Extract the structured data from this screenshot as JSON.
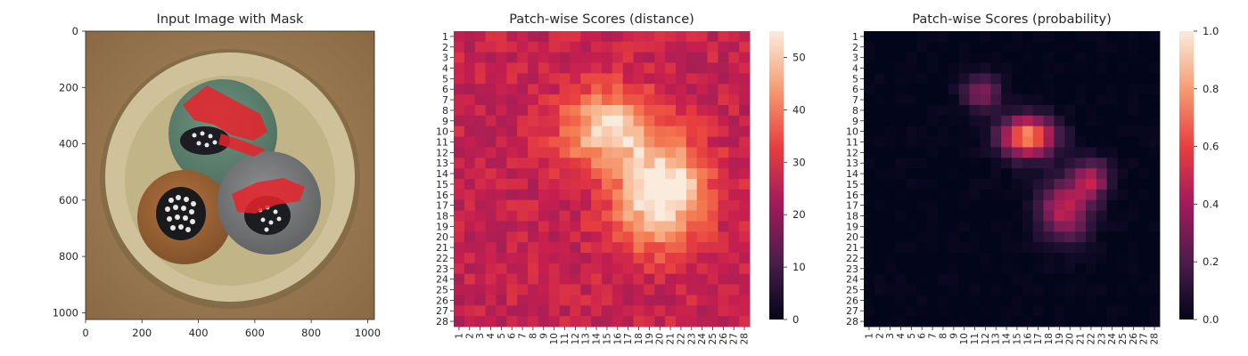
{
  "panels": [
    {
      "title": "Input Image with Mask",
      "x_ticks": [
        "0",
        "200",
        "400",
        "600",
        "800",
        "1000"
      ],
      "y_ticks": [
        "0",
        "200",
        "400",
        "600",
        "800",
        "1000"
      ]
    },
    {
      "title": "Patch-wise Scores (distance)",
      "colorbar_ticks": [
        "0",
        "10",
        "20",
        "30",
        "40",
        "50"
      ]
    },
    {
      "title": "Patch-wise Scores (probability)",
      "colorbar_ticks": [
        "0.0",
        "0.2",
        "0.4",
        "0.6",
        "0.8",
        "1.0"
      ]
    }
  ],
  "chart_data": [
    {
      "type": "image",
      "title": "Input Image with Mask",
      "xlim": [
        0,
        1024
      ],
      "ylim": [
        1024,
        0
      ],
      "content": "cable cross-section with three insulated cores; red defect mask on top (green) and right (gray) cores",
      "colors": {
        "background": "#9a7a52",
        "shield": "#cfc29a",
        "core_green": "#5f8470",
        "core_brown": "#9c6538",
        "core_gray": "#7f8083",
        "mask": "#e8232b"
      }
    },
    {
      "type": "heatmap",
      "title": "Patch-wise Scores (distance)",
      "rows": 28,
      "cols": 28,
      "row_labels": [
        "1",
        "2",
        "3",
        "4",
        "5",
        "6",
        "7",
        "8",
        "9",
        "10",
        "11",
        "12",
        "13",
        "14",
        "15",
        "16",
        "17",
        "18",
        "19",
        "20",
        "21",
        "22",
        "23",
        "24",
        "25",
        "26",
        "27",
        "28"
      ],
      "col_labels": [
        "1",
        "2",
        "3",
        "4",
        "5",
        "6",
        "7",
        "8",
        "9",
        "10",
        "11",
        "12",
        "13",
        "14",
        "15",
        "16",
        "17",
        "18",
        "19",
        "20",
        "21",
        "22",
        "23",
        "24",
        "25",
        "26",
        "27",
        "28"
      ],
      "colormap": "rocket",
      "colorbar_range": [
        0,
        55
      ],
      "baseline": 30,
      "hotspots": [
        {
          "row": 9.8,
          "col": 15.3,
          "peak": 55,
          "sigma_row": 2.6,
          "sigma_col": 3.2
        },
        {
          "row": 17.3,
          "col": 19.7,
          "peak": 52,
          "sigma_row": 3.0,
          "sigma_col": 3.0
        },
        {
          "row": 14,
          "col": 21,
          "peak": 44,
          "sigma_row": 2.5,
          "sigma_col": 2.5
        }
      ]
    },
    {
      "type": "heatmap",
      "title": "Patch-wise Scores (probability)",
      "rows": 28,
      "cols": 28,
      "row_labels": [
        "1",
        "2",
        "3",
        "4",
        "5",
        "6",
        "7",
        "8",
        "9",
        "10",
        "11",
        "12",
        "13",
        "14",
        "15",
        "16",
        "17",
        "18",
        "19",
        "20",
        "21",
        "22",
        "23",
        "24",
        "25",
        "26",
        "27",
        "28"
      ],
      "col_labels": [
        "1",
        "2",
        "3",
        "4",
        "5",
        "6",
        "7",
        "8",
        "9",
        "10",
        "11",
        "12",
        "13",
        "14",
        "15",
        "16",
        "17",
        "18",
        "19",
        "20",
        "21",
        "22",
        "23",
        "24",
        "25",
        "26",
        "27",
        "28"
      ],
      "colormap": "rocket",
      "colorbar_range": [
        0,
        1
      ],
      "baseline": 0,
      "hotspots": [
        {
          "row": 10.5,
          "col": 16,
          "peak": 0.85,
          "sigma_row": 1.4,
          "sigma_col": 1.9
        },
        {
          "row": 6.3,
          "col": 11.6,
          "peak": 0.4,
          "sigma_row": 1.2,
          "sigma_col": 1.3
        },
        {
          "row": 17.5,
          "col": 19.5,
          "peak": 0.55,
          "sigma_row": 2.0,
          "sigma_col": 1.8
        },
        {
          "row": 14.5,
          "col": 22,
          "peak": 0.5,
          "sigma_row": 1.3,
          "sigma_col": 1.2
        }
      ]
    }
  ]
}
